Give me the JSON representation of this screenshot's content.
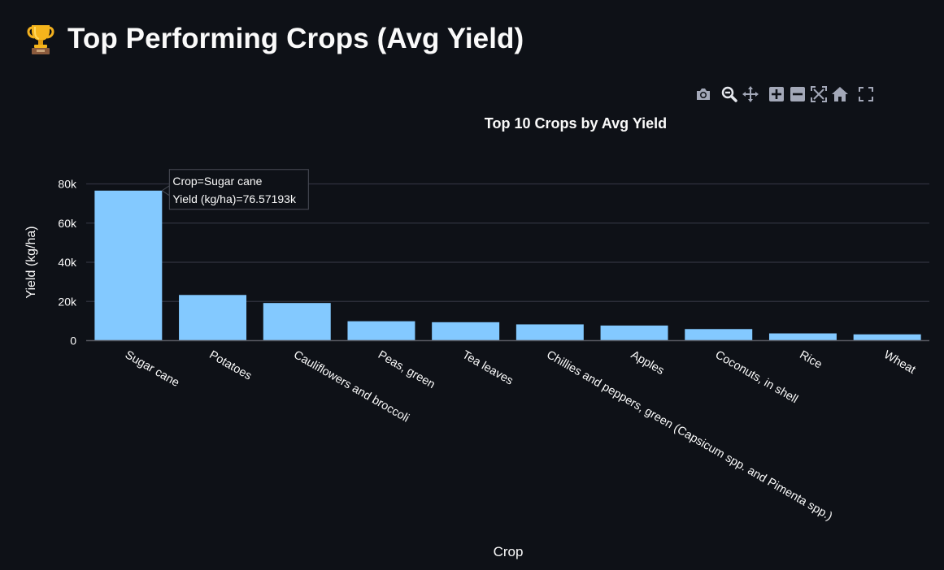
{
  "page": {
    "title": "Top Performing Crops (Avg Yield)",
    "title_icon": "trophy-icon"
  },
  "modebar": {
    "buttons": [
      {
        "name": "camera-icon",
        "label": "Download plot as a png"
      },
      {
        "name": "zoom-icon",
        "label": "Zoom"
      },
      {
        "name": "pan-icon",
        "label": "Pan"
      },
      {
        "name": "zoom-in-icon",
        "label": "Zoom in"
      },
      {
        "name": "zoom-out-icon",
        "label": "Zoom out"
      },
      {
        "name": "autoscale-icon",
        "label": "Autoscale"
      },
      {
        "name": "home-icon",
        "label": "Reset axes"
      },
      {
        "name": "fullscreen-icon",
        "label": "Fullscreen"
      }
    ]
  },
  "colors": {
    "background": "#0e1117",
    "bar": "#83c9ff",
    "grid": "#31333f",
    "text": "#fafafa",
    "icon": "#a3a8b8",
    "icon_active": "#e6e8ee"
  },
  "chart_data": {
    "type": "bar",
    "title": "Top 10 Crops by Avg Yield",
    "xlabel": "Crop",
    "ylabel": "Yield (kg/ha)",
    "ylim": [
      0,
      80000
    ],
    "y_ticks": [
      0,
      20000,
      40000,
      60000,
      80000
    ],
    "y_tick_labels": [
      "0",
      "20k",
      "40k",
      "60k",
      "80k"
    ],
    "grid": true,
    "categories": [
      "Sugar cane",
      "Potatoes",
      "Cauliflowers and broccoli",
      "Peas, green",
      "Tea leaves",
      "Chillies and peppers, green (Capsicum spp. and Pimenta spp.)",
      "Apples",
      "Coconuts, in shell",
      "Rice",
      "Wheat"
    ],
    "values": [
      76571.93,
      23300,
      19200,
      9900,
      9400,
      8300,
      7700,
      5900,
      3700,
      3200
    ],
    "tooltip": {
      "category_index": 0,
      "line1": "Crop=Sugar cane",
      "line2": "Yield (kg/ha)=76.57193k"
    }
  }
}
